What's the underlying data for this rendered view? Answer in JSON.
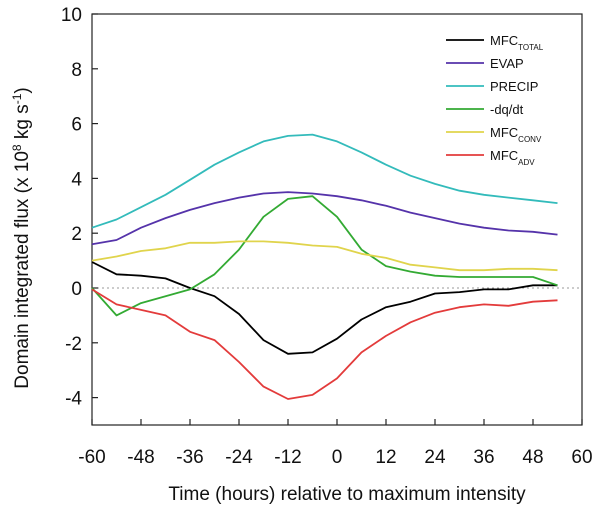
{
  "chart_data": {
    "type": "line",
    "xlabel": "Time (hours) relative to maximum intensity",
    "ylabel_main": "Domain integrated flux (x 10",
    "ylabel_exp": "8",
    "ylabel_unit": " kg s",
    "ylabel_unit_exp": "-1",
    "ylabel_close": ")",
    "xlim": [
      -60,
      60
    ],
    "ylim": [
      -5,
      10
    ],
    "xticks": [
      -60,
      -48,
      -36,
      -24,
      -12,
      0,
      12,
      24,
      36,
      48,
      60
    ],
    "yticks": [
      -4,
      -2,
      0,
      2,
      4,
      6,
      8,
      10
    ],
    "zero_line": true,
    "legend_position": "top-right",
    "series": [
      {
        "name": "MFC",
        "subscript": "TOTAL",
        "color": "#000000",
        "points": [
          [
            -60,
            0.95
          ],
          [
            -54,
            0.5
          ],
          [
            -48,
            0.45
          ],
          [
            -42,
            0.35
          ],
          [
            -36,
            0.0
          ],
          [
            -30,
            -0.3
          ],
          [
            -24,
            -0.95
          ],
          [
            -18,
            -1.9
          ],
          [
            -12,
            -2.4
          ],
          [
            -6,
            -2.35
          ],
          [
            0,
            -1.85
          ],
          [
            6,
            -1.15
          ],
          [
            12,
            -0.7
          ],
          [
            18,
            -0.5
          ],
          [
            24,
            -0.2
          ],
          [
            30,
            -0.15
          ],
          [
            36,
            -0.05
          ],
          [
            42,
            -0.05
          ],
          [
            48,
            0.1
          ],
          [
            54,
            0.1
          ]
        ]
      },
      {
        "name": "EVAP",
        "subscript": "",
        "color": "#5533aa",
        "points": [
          [
            -60,
            1.6
          ],
          [
            -54,
            1.75
          ],
          [
            -48,
            2.2
          ],
          [
            -42,
            2.55
          ],
          [
            -36,
            2.85
          ],
          [
            -30,
            3.1
          ],
          [
            -24,
            3.3
          ],
          [
            -18,
            3.45
          ],
          [
            -12,
            3.5
          ],
          [
            -6,
            3.45
          ],
          [
            0,
            3.35
          ],
          [
            6,
            3.2
          ],
          [
            12,
            3.0
          ],
          [
            18,
            2.75
          ],
          [
            24,
            2.55
          ],
          [
            30,
            2.35
          ],
          [
            36,
            2.2
          ],
          [
            42,
            2.1
          ],
          [
            48,
            2.05
          ],
          [
            54,
            1.95
          ]
        ]
      },
      {
        "name": "PRECIP",
        "subscript": "",
        "color": "#33bbbb",
        "points": [
          [
            -60,
            2.2
          ],
          [
            -54,
            2.5
          ],
          [
            -48,
            2.95
          ],
          [
            -42,
            3.4
          ],
          [
            -36,
            3.95
          ],
          [
            -30,
            4.5
          ],
          [
            -24,
            4.95
          ],
          [
            -18,
            5.35
          ],
          [
            -12,
            5.55
          ],
          [
            -6,
            5.6
          ],
          [
            0,
            5.35
          ],
          [
            6,
            4.95
          ],
          [
            12,
            4.5
          ],
          [
            18,
            4.1
          ],
          [
            24,
            3.8
          ],
          [
            30,
            3.55
          ],
          [
            36,
            3.4
          ],
          [
            42,
            3.3
          ],
          [
            48,
            3.2
          ],
          [
            54,
            3.1
          ]
        ]
      },
      {
        "name": "-dq/dt",
        "subscript": "",
        "color": "#33aa33",
        "points": [
          [
            -60,
            0.0
          ],
          [
            -54,
            -1.0
          ],
          [
            -48,
            -0.55
          ],
          [
            -42,
            -0.3
          ],
          [
            -36,
            -0.05
          ],
          [
            -30,
            0.5
          ],
          [
            -24,
            1.4
          ],
          [
            -18,
            2.6
          ],
          [
            -12,
            3.25
          ],
          [
            -6,
            3.35
          ],
          [
            0,
            2.6
          ],
          [
            6,
            1.4
          ],
          [
            12,
            0.8
          ],
          [
            18,
            0.6
          ],
          [
            24,
            0.45
          ],
          [
            30,
            0.4
          ],
          [
            36,
            0.4
          ],
          [
            42,
            0.4
          ],
          [
            48,
            0.4
          ],
          [
            54,
            0.1
          ]
        ]
      },
      {
        "name": "MFC",
        "subscript": "CONV",
        "color": "#e0d44c",
        "points": [
          [
            -60,
            1.0
          ],
          [
            -54,
            1.15
          ],
          [
            -48,
            1.35
          ],
          [
            -42,
            1.45
          ],
          [
            -36,
            1.65
          ],
          [
            -30,
            1.65
          ],
          [
            -24,
            1.7
          ],
          [
            -18,
            1.7
          ],
          [
            -12,
            1.65
          ],
          [
            -6,
            1.55
          ],
          [
            0,
            1.5
          ],
          [
            6,
            1.25
          ],
          [
            12,
            1.1
          ],
          [
            18,
            0.85
          ],
          [
            24,
            0.75
          ],
          [
            30,
            0.65
          ],
          [
            36,
            0.65
          ],
          [
            42,
            0.7
          ],
          [
            48,
            0.7
          ],
          [
            54,
            0.65
          ]
        ]
      },
      {
        "name": "MFC",
        "subscript": "ADV",
        "color": "#e33b3b",
        "points": [
          [
            -60,
            -0.05
          ],
          [
            -54,
            -0.6
          ],
          [
            -48,
            -0.8
          ],
          [
            -42,
            -1.0
          ],
          [
            -36,
            -1.6
          ],
          [
            -30,
            -1.9
          ],
          [
            -24,
            -2.7
          ],
          [
            -18,
            -3.6
          ],
          [
            -12,
            -4.05
          ],
          [
            -6,
            -3.9
          ],
          [
            0,
            -3.3
          ],
          [
            6,
            -2.35
          ],
          [
            12,
            -1.75
          ],
          [
            18,
            -1.25
          ],
          [
            24,
            -0.9
          ],
          [
            30,
            -0.7
          ],
          [
            36,
            -0.6
          ],
          [
            42,
            -0.65
          ],
          [
            48,
            -0.5
          ],
          [
            54,
            -0.45
          ]
        ]
      }
    ]
  }
}
